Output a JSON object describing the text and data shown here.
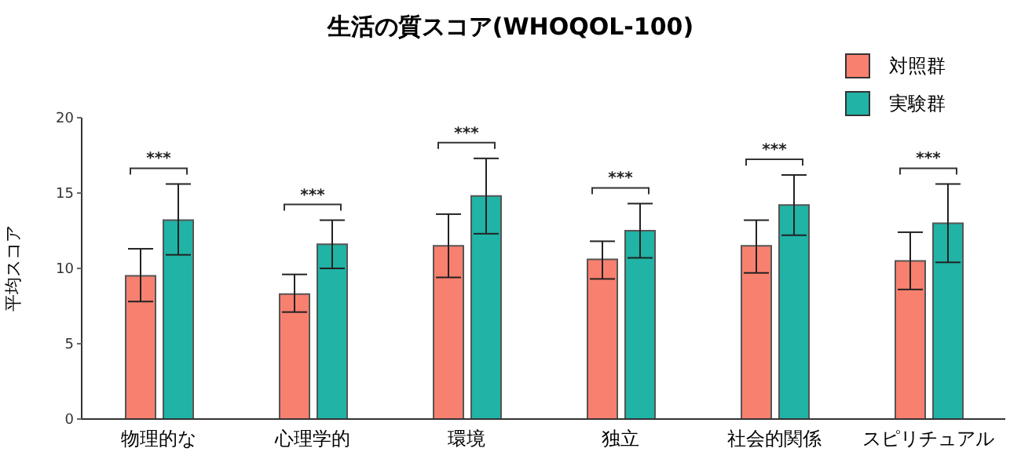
{
  "chart_data": {
    "type": "bar",
    "title": "生活の質スコア(WHOQOL-100)",
    "ylabel": "平均スコア",
    "categories": [
      "物理的な",
      "心理学的",
      "環境",
      "独立",
      "社会的関係",
      "スピリチュアル"
    ],
    "series": [
      {
        "name": "対照群",
        "color": "#f8806f",
        "values": [
          9.5,
          8.3,
          11.5,
          10.6,
          11.5,
          10.5
        ],
        "errors": [
          [
            7.8,
            11.3
          ],
          [
            7.1,
            9.6
          ],
          [
            9.4,
            13.6
          ],
          [
            9.3,
            11.8
          ],
          [
            9.7,
            13.2
          ],
          [
            8.6,
            12.4
          ]
        ]
      },
      {
        "name": "実験群",
        "color": "#20b3a6",
        "values": [
          13.2,
          11.6,
          14.8,
          12.5,
          14.2,
          13.0
        ],
        "errors": [
          [
            10.9,
            15.6
          ],
          [
            10.0,
            13.2
          ],
          [
            12.3,
            17.3
          ],
          [
            10.7,
            14.3
          ],
          [
            12.2,
            16.2
          ],
          [
            10.4,
            15.6
          ]
        ]
      }
    ],
    "ylim": [
      0,
      20
    ],
    "yticks": [
      0,
      5,
      10,
      15,
      20
    ],
    "grid": false,
    "legend": "top right",
    "annotations": [
      "***",
      "***",
      "***",
      "***",
      "***",
      "***"
    ]
  }
}
